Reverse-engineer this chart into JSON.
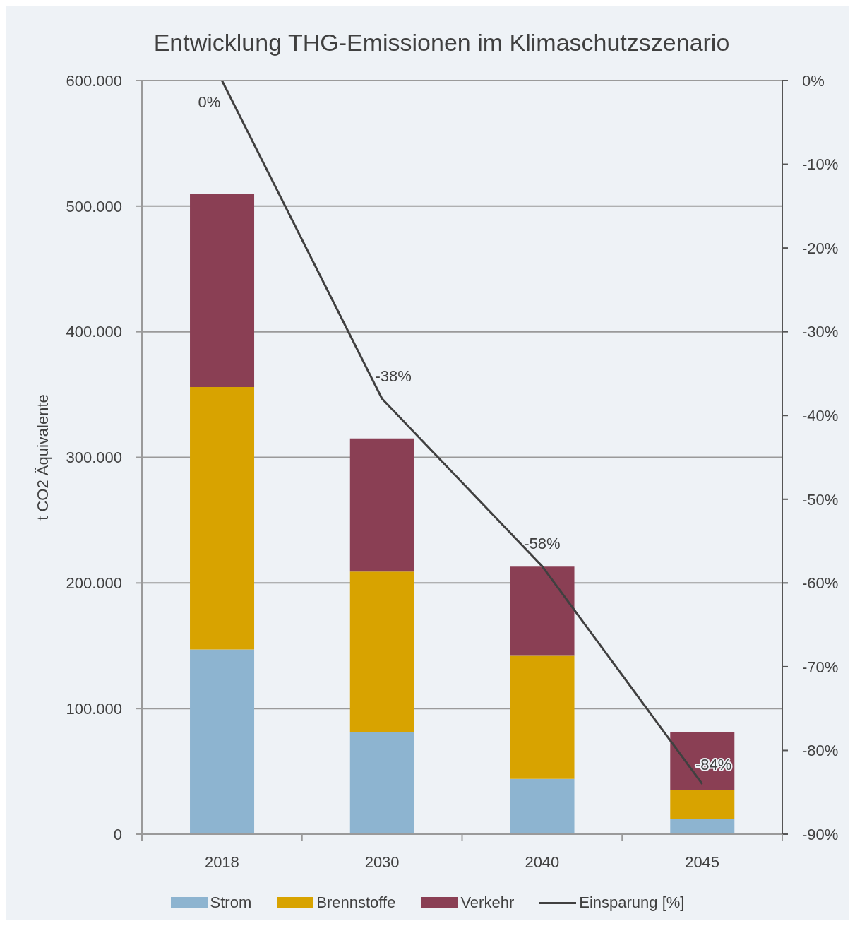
{
  "chart_data": {
    "type": "bar",
    "title": "Entwicklung THG-Emissionen im Klimaschutzszenario",
    "ylabel": "t CO2 Äquivalente",
    "categories": [
      "2018",
      "2030",
      "2040",
      "2045"
    ],
    "stacked": true,
    "series": [
      {
        "name": "Strom",
        "color": "#8db4d0",
        "values": [
          147000,
          81000,
          44000,
          12000
        ]
      },
      {
        "name": "Brennstoffe",
        "color": "#d8a300",
        "values": [
          209000,
          128000,
          98000,
          23000
        ]
      },
      {
        "name": "Verkehr",
        "color": "#8a3f54",
        "values": [
          154000,
          106000,
          71000,
          46000
        ]
      },
      {
        "name": "Einsparung [%]",
        "type": "line",
        "axis": "y2",
        "color": "#404040",
        "values": [
          0,
          -38,
          -58,
          -84
        ],
        "value_labels": [
          "0%",
          "-38%",
          "-58%",
          "-84%"
        ]
      }
    ],
    "ylim": [
      0,
      600000
    ],
    "yticks": [
      0,
      {
        "value": 100000,
        "label": "100.000"
      },
      {
        "value": 200000,
        "label": "200.000"
      },
      {
        "value": 300000,
        "label": "300.000"
      },
      {
        "value": 400000,
        "label": "400.000"
      },
      {
        "value": 500000,
        "label": "500.000"
      },
      {
        "value": 600000,
        "label": "600.000"
      }
    ],
    "y2lim": [
      -90,
      0
    ],
    "y2ticks": [
      {
        "value": 0,
        "label": "0%"
      },
      {
        "value": -10,
        "label": "-10%"
      },
      {
        "value": -20,
        "label": "-20%"
      },
      {
        "value": -30,
        "label": "-30%"
      },
      {
        "value": -40,
        "label": "-40%"
      },
      {
        "value": -50,
        "label": "-50%"
      },
      {
        "value": -60,
        "label": "-60%"
      },
      {
        "value": -70,
        "label": "-70%"
      },
      {
        "value": -80,
        "label": "-80%"
      },
      {
        "value": -90,
        "label": "-90%"
      }
    ],
    "grid": "y",
    "legend": "bottom"
  }
}
